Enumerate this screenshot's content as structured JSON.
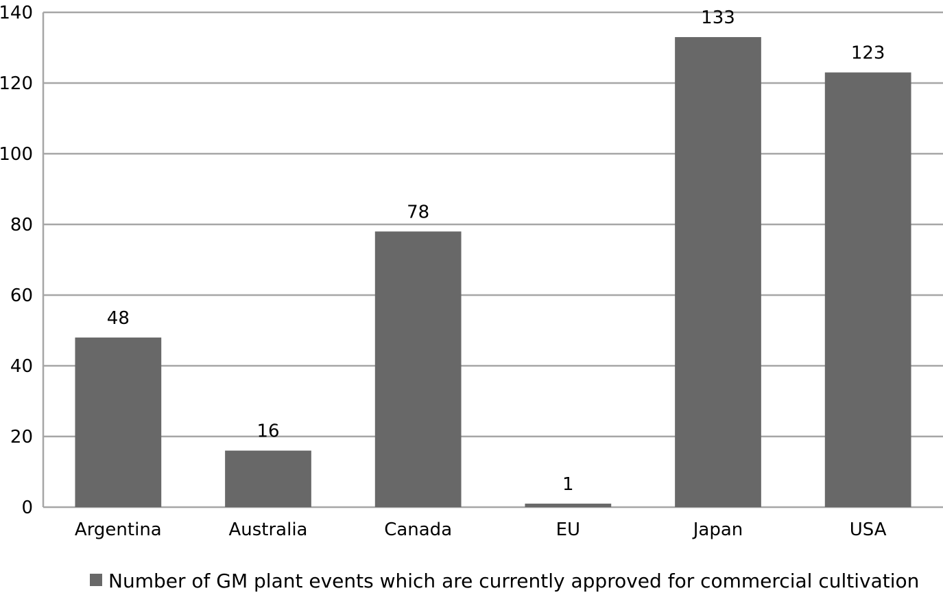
{
  "chart_data": {
    "type": "bar",
    "categories": [
      "Argentina",
      "Australia",
      "Canada",
      "EU",
      "Japan",
      "USA"
    ],
    "series": [
      {
        "name": "Number of GM plant events which are currently approved for commercial cultivation",
        "values": [
          48,
          16,
          78,
          1,
          133,
          123
        ],
        "color": "#686868"
      }
    ],
    "ylim": [
      0,
      140
    ],
    "yticks": [
      0,
      20,
      40,
      60,
      80,
      100,
      120,
      140
    ],
    "grid": true,
    "gridColor": "#a6a6a6",
    "legend": "bottom",
    "data_labels": true
  }
}
